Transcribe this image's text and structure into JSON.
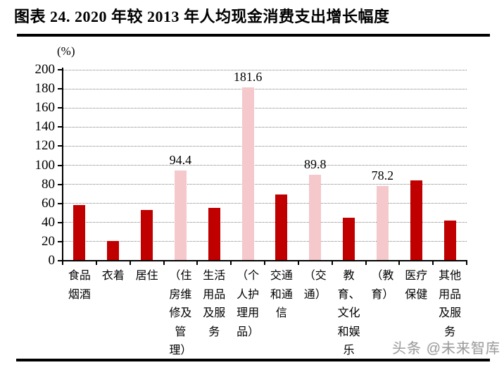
{
  "header": {
    "title": "图表 24. 2020 年较 2013 年人均现金消费支出增长幅度"
  },
  "watermark": "头条 @未来智库",
  "chart_data": {
    "type": "bar",
    "title": "2020 年较 2013 年人均现金消费支出增长幅度",
    "unit_label": "(%)",
    "xlabel": "",
    "ylabel": "(%)",
    "ylim": [
      0,
      200
    ],
    "y_ticks": [
      "0",
      "20",
      "40",
      "60",
      "80",
      "100",
      "120",
      "140",
      "160",
      "180",
      "200"
    ],
    "grid": "horizontal-dotted",
    "legend": "none",
    "colors": {
      "main": "#C00000",
      "highlight": "#F5C8CB"
    },
    "categories": [
      "食品烟酒",
      "衣着",
      "居住",
      "（住房维修及管理）",
      "生活用品及服务",
      "（个人护理用品）",
      "交通和通信",
      "（交通）",
      "教育、文化和娱乐",
      "（教育）",
      "医疗保健",
      "其他用品及服务"
    ],
    "bars": [
      {
        "category": "食品烟酒",
        "label_lines": "食品\n烟酒",
        "value": 58.5,
        "role": "main",
        "data_label": ""
      },
      {
        "category": "衣着",
        "label_lines": "衣着",
        "value": 20.5,
        "role": "main",
        "data_label": ""
      },
      {
        "category": "居住",
        "label_lines": "居住",
        "value": 53.0,
        "role": "main",
        "data_label": ""
      },
      {
        "category": "（住房维修及管理）",
        "label_lines": "（住\n房维\n修及\n管\n理）",
        "value": 94.4,
        "role": "highlight",
        "data_label": "94.4"
      },
      {
        "category": "生活用品及服务",
        "label_lines": "生活\n用品\n及服\n务",
        "value": 55.0,
        "role": "main",
        "data_label": ""
      },
      {
        "category": "（个人护理用品）",
        "label_lines": "（个\n人护\n理用\n品）",
        "value": 181.6,
        "role": "highlight",
        "data_label": "181.6"
      },
      {
        "category": "交通和通信",
        "label_lines": "交通\n和通\n信",
        "value": 69.5,
        "role": "main",
        "data_label": ""
      },
      {
        "category": "（交通）",
        "label_lines": "（交\n通）",
        "value": 89.8,
        "role": "highlight",
        "data_label": "89.8"
      },
      {
        "category": "教育、文化和娱乐",
        "label_lines": "教\n育、\n文化\n和娱\n乐",
        "value": 45.0,
        "role": "main",
        "data_label": ""
      },
      {
        "category": "（教育）",
        "label_lines": "（教\n育）",
        "value": 78.2,
        "role": "highlight",
        "data_label": "78.2"
      },
      {
        "category": "医疗保健",
        "label_lines": "医疗\n保健",
        "value": 84.0,
        "role": "main",
        "data_label": ""
      },
      {
        "category": "其他用品及服务",
        "label_lines": "其他\n用品\n及服\n务",
        "value": 42.0,
        "role": "main",
        "data_label": ""
      }
    ]
  }
}
